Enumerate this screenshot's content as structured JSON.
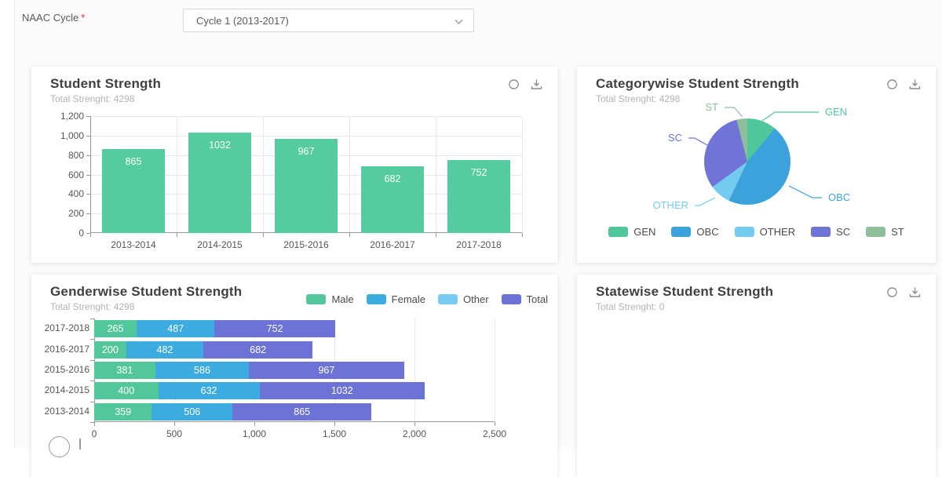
{
  "form": {
    "label": "NAAC Cycle",
    "required_mark": "*",
    "dropdown_value": "Cycle 1 (2013-2017)"
  },
  "cards": {
    "student_strength": {
      "title": "Student Strength",
      "subtitle": "Total Strenght: 4298"
    },
    "categorywise": {
      "title": "Categorywise Student Strength",
      "subtitle": "Total Strenght: 4298"
    },
    "genderwise": {
      "title": "Genderwise Student Strength",
      "subtitle": "Total Strenght: 4298"
    },
    "statewise": {
      "title": "Statewise Student Strength",
      "subtitle": "Total Strenght: 0"
    }
  },
  "colors": {
    "green": "#55cba0",
    "blue": "#3ba4dc",
    "light_blue": "#76ccf0",
    "purple": "#6d73d6",
    "sage": "#8fbf9a",
    "axis": "#999999",
    "grid": "#e8e8e8",
    "icon": "#8c8c8c"
  },
  "chart_data": [
    {
      "type": "bar",
      "title": "Student Strength",
      "total": 4298,
      "categories": [
        "2013-2014",
        "2014-2015",
        "2015-2016",
        "2016-2017",
        "2017-2018"
      ],
      "values": [
        865,
        1032,
        967,
        682,
        752
      ],
      "ylim": [
        0,
        1200
      ],
      "ytick_step": 200,
      "ytick_labels": [
        "0",
        "200",
        "400",
        "600",
        "800",
        "1,000",
        "1,200"
      ],
      "bar_color": "#55cba0",
      "grid": true,
      "value_labels": [
        "865",
        "1032",
        "967",
        "682",
        "752"
      ]
    },
    {
      "type": "pie",
      "title": "Categorywise Student Strength",
      "total": 4298,
      "slices": [
        {
          "label": "GEN",
          "pct": 11,
          "color": "#4fc79b"
        },
        {
          "label": "OBC",
          "pct": 46,
          "color": "#3ba2dc"
        },
        {
          "label": "OTHER",
          "pct": 8,
          "color": "#74cbf0"
        },
        {
          "label": "SC",
          "pct": 31,
          "color": "#6f74d6"
        },
        {
          "label": "ST",
          "pct": 4,
          "color": "#8fbf9a"
        }
      ],
      "legend": [
        "GEN",
        "OBC",
        "OTHER",
        "SC",
        "ST"
      ],
      "legend_position": "bottom"
    },
    {
      "type": "stacked-bar-horizontal",
      "title": "Genderwise Student Strength",
      "total": 4298,
      "categories_top_to_bottom": [
        "2017-2018",
        "2016-2017",
        "2015-2016",
        "2014-2015",
        "2013-2014"
      ],
      "series": [
        {
          "name": "Male",
          "color": "#52c79b",
          "values": [
            265,
            200,
            381,
            400,
            359
          ]
        },
        {
          "name": "Female",
          "color": "#3cabdf",
          "values": [
            487,
            482,
            586,
            632,
            506
          ]
        },
        {
          "name": "Other",
          "color": "#79ccf1",
          "values": [
            0,
            0,
            0,
            0,
            0
          ]
        },
        {
          "name": "Total",
          "color": "#6d73d6",
          "values": [
            752,
            682,
            967,
            1032,
            865
          ]
        }
      ],
      "xlim": [
        0,
        2500
      ],
      "xtick_labels": [
        "0",
        "500",
        "1,000",
        "1,500",
        "2,000",
        "2,500"
      ],
      "legend": [
        "Male",
        "Female",
        "Other",
        "Total"
      ],
      "legend_position": "top-right",
      "grid": true
    }
  ]
}
